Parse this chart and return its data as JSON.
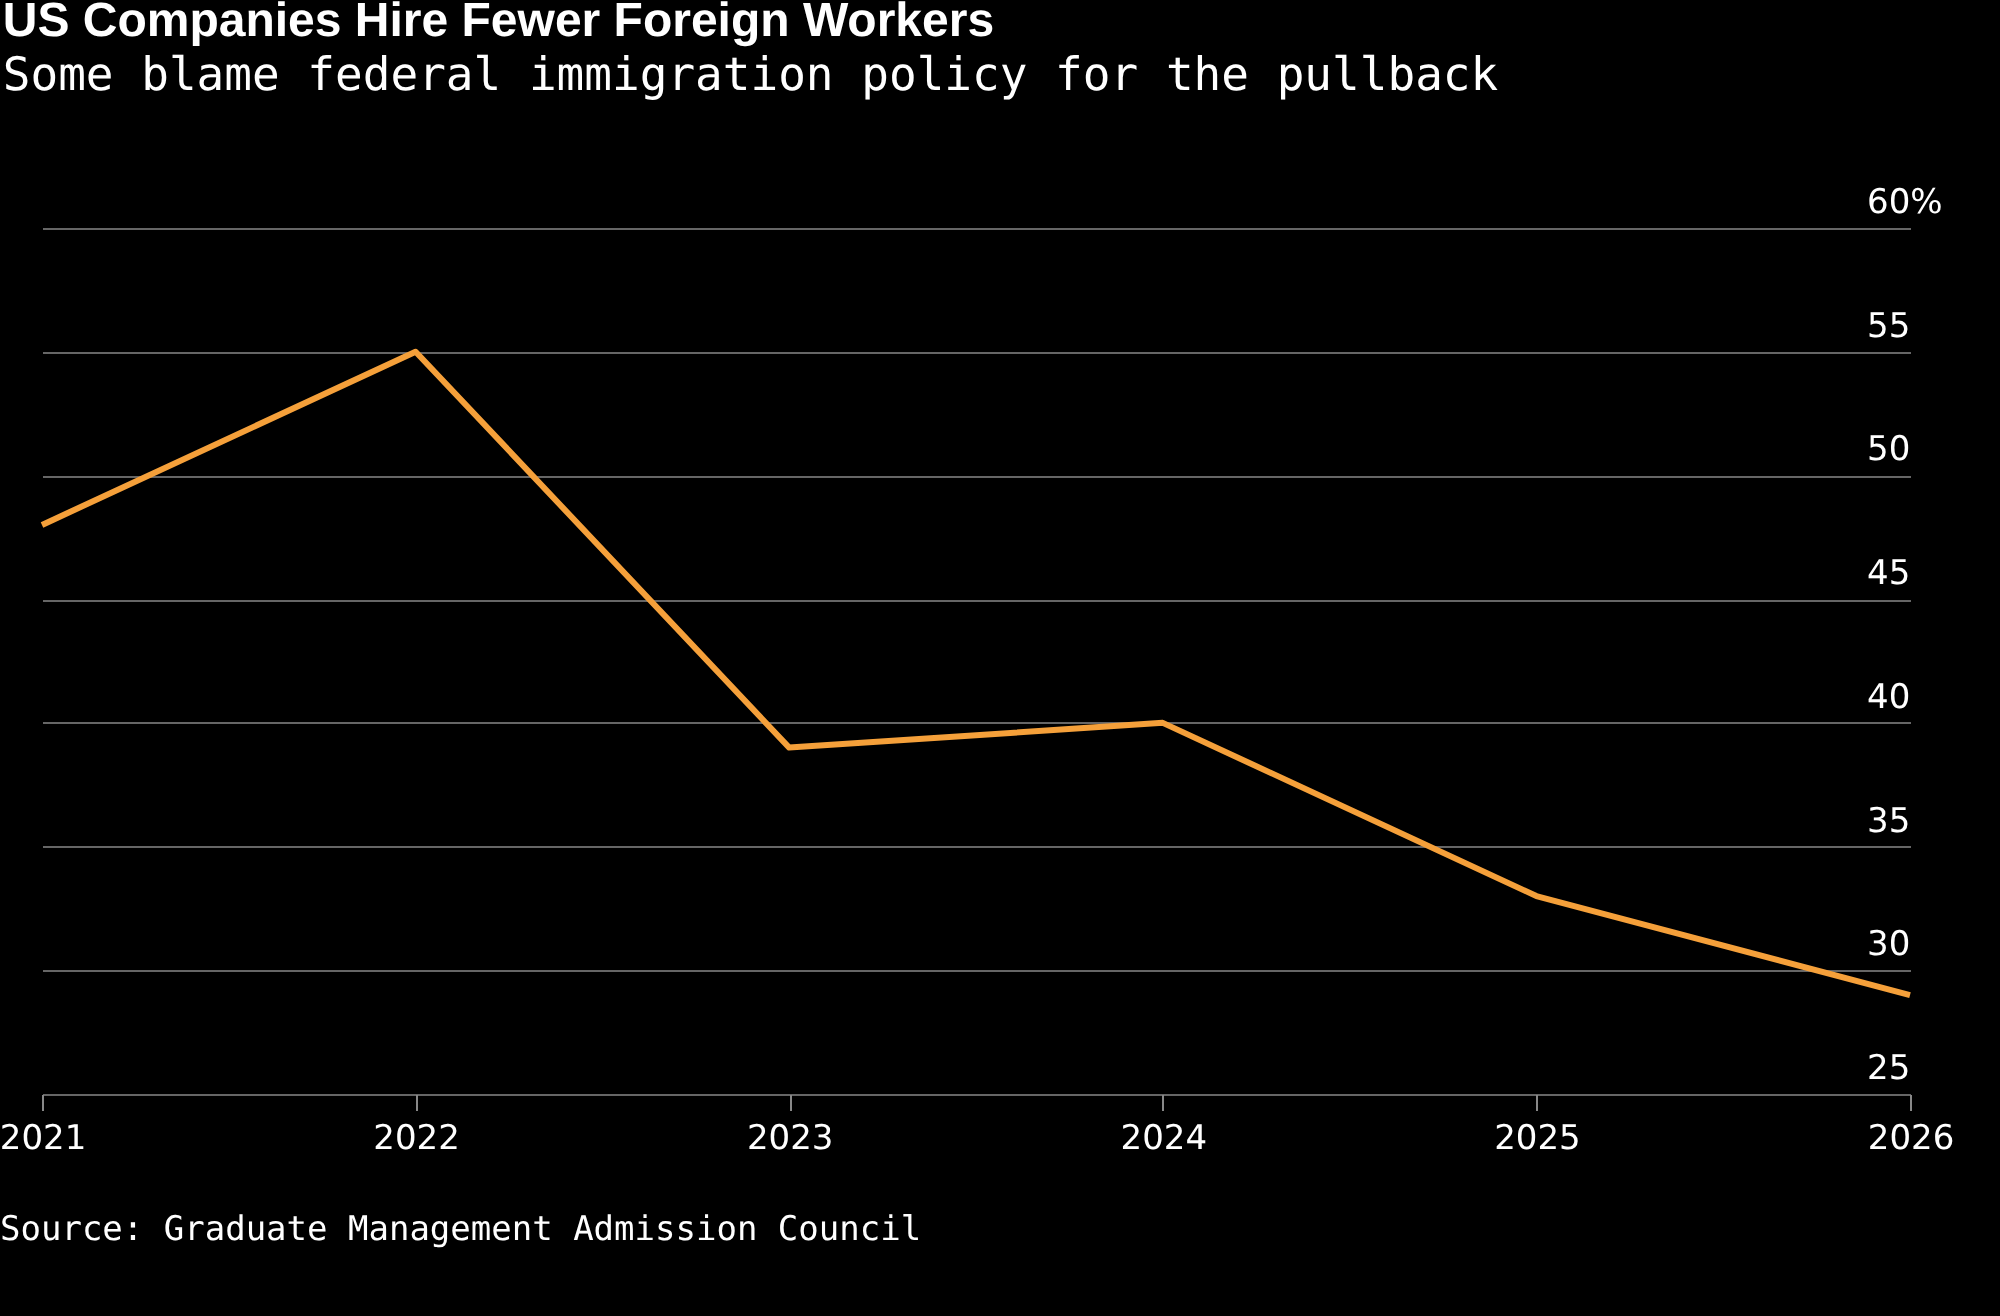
{
  "chart_data": {
    "type": "line",
    "title": "US Companies Hire Fewer Foreign Workers",
    "subtitle": "Some blame federal immigration policy for the pullback",
    "categories": [
      "2021",
      "2022",
      "2023",
      "2024",
      "2025",
      "2026"
    ],
    "series": [
      {
        "color": "#f5a03a",
        "values": [
          48,
          55,
          39,
          40,
          33,
          29
        ]
      }
    ],
    "ylim": [
      25,
      60
    ],
    "yticks": [
      25,
      30,
      35,
      40,
      45,
      50,
      55,
      {
        "value": 60,
        "label": "60%"
      }
    ],
    "grid": "y",
    "annotations": [
      "Source: Graduate Management Admission Council"
    ]
  }
}
